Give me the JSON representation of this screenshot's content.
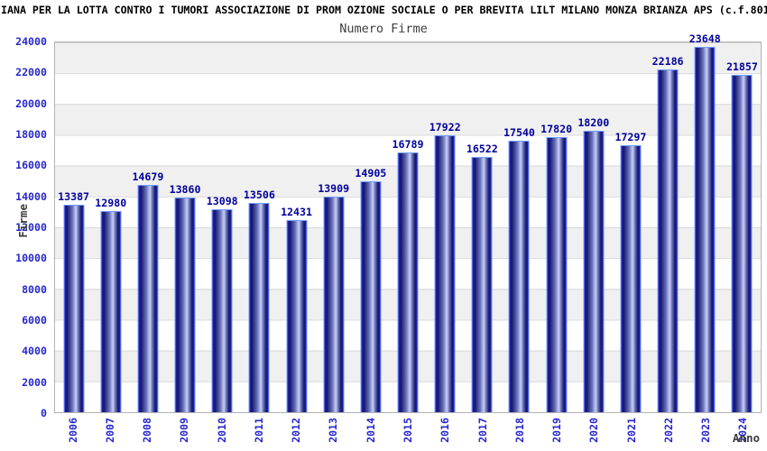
{
  "header": {
    "title": "IANA PER LA LOTTA CONTRO I TUMORI ASSOCIAZIONE DI PROM OZIONE SOCIALE O PER BREVITA LILT MILANO MONZA BRIANZA APS (c.f.801",
    "subtitle": "Numero Firme"
  },
  "chart_data": {
    "type": "bar",
    "title": "IANA PER LA LOTTA CONTRO I TUMORI ASSOCIAZIONE DI PROM OZIONE SOCIALE O PER BREVITA LILT MILANO MONZA BRIANZA APS (c.f.801",
    "subtitle": "Numero Firme",
    "xlabel": "Anno",
    "ylabel": "Firme",
    "categories": [
      "2006",
      "2007",
      "2008",
      "2009",
      "2010",
      "2011",
      "2012",
      "2013",
      "2014",
      "2015",
      "2016",
      "2017",
      "2018",
      "2019",
      "2020",
      "2021",
      "2022",
      "2023",
      "2024"
    ],
    "values": [
      13387,
      12980,
      14679,
      13860,
      13098,
      13506,
      12431,
      13909,
      14905,
      16789,
      17922,
      16522,
      17540,
      17820,
      18200,
      17297,
      22186,
      23648,
      21857
    ],
    "ylim": [
      0,
      24000
    ],
    "ytick_step": 2000,
    "legend": "none",
    "grid": "horizontal alternating bands",
    "colors": {
      "bar_edge_dark": "#16166e",
      "bar_highlight": "#c6cdf2",
      "bar_border": "#6f9bff",
      "value_label": "#00009c",
      "tick_label": "#2727cd",
      "axis_title": "#3d3d3d",
      "band_gray": "#f0f0f0",
      "band_white": "#ffffff",
      "plot_border": "#b3b3b3"
    }
  }
}
